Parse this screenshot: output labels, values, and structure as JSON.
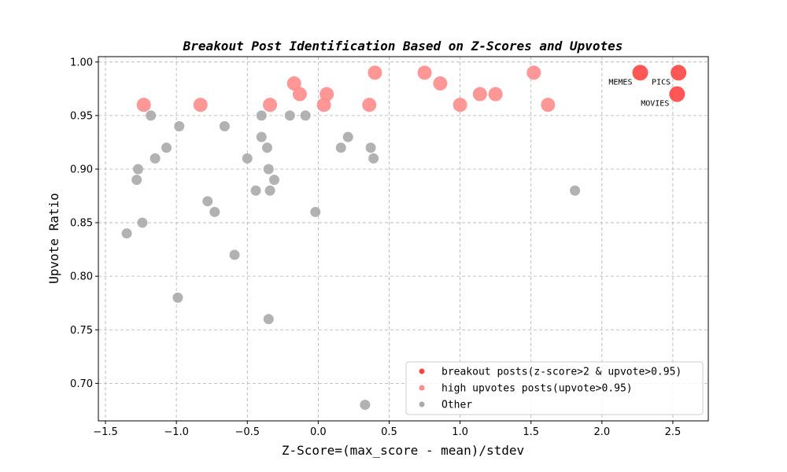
{
  "chart_data": {
    "type": "scatter",
    "title": "Breakout Post Identification Based on Z-Scores and Upvotes",
    "xlabel": "Z-Score=(max_score - mean)/stdev",
    "ylabel": "Upvote Ratio",
    "xlim": [
      -1.55,
      2.75
    ],
    "ylim": [
      0.665,
      1.005
    ],
    "xticks": [
      -1.5,
      -1.0,
      -0.5,
      0.0,
      0.5,
      1.0,
      1.5,
      2.0,
      2.5
    ],
    "xtick_labels": [
      "−1.5",
      "−1.0",
      "−0.5",
      "0.0",
      "0.5",
      "1.0",
      "1.5",
      "2.0",
      "2.5"
    ],
    "yticks": [
      0.7,
      0.75,
      0.8,
      0.85,
      0.9,
      0.95,
      1.0
    ],
    "ytick_labels": [
      "0.70",
      "0.75",
      "0.80",
      "0.85",
      "0.90",
      "0.95",
      "1.00"
    ],
    "grid": true,
    "legend_position": "lower-right",
    "series": [
      {
        "name": "breakout posts(z-score>2 & upvote>0.95)",
        "color": "#ff4444",
        "points": [
          {
            "x": 2.27,
            "y": 0.99
          },
          {
            "x": 2.54,
            "y": 0.99
          },
          {
            "x": 2.53,
            "y": 0.97
          }
        ]
      },
      {
        "name": "high upvotes posts(upvote>0.95)",
        "color": "#ff8c8c",
        "points": [
          {
            "x": -1.23,
            "y": 0.96
          },
          {
            "x": -0.83,
            "y": 0.96
          },
          {
            "x": -0.34,
            "y": 0.96
          },
          {
            "x": -0.17,
            "y": 0.98
          },
          {
            "x": -0.13,
            "y": 0.97
          },
          {
            "x": 0.04,
            "y": 0.96
          },
          {
            "x": 0.06,
            "y": 0.97
          },
          {
            "x": 0.36,
            "y": 0.96
          },
          {
            "x": 0.4,
            "y": 0.99
          },
          {
            "x": 0.75,
            "y": 0.99
          },
          {
            "x": 0.86,
            "y": 0.98
          },
          {
            "x": 1.0,
            "y": 0.96
          },
          {
            "x": 1.14,
            "y": 0.97
          },
          {
            "x": 1.25,
            "y": 0.97
          },
          {
            "x": 1.52,
            "y": 0.99
          },
          {
            "x": 1.62,
            "y": 0.96
          }
        ]
      },
      {
        "name": "Other",
        "color": "#aaaaaa",
        "points": [
          {
            "x": -1.35,
            "y": 0.84
          },
          {
            "x": -1.28,
            "y": 0.89
          },
          {
            "x": -1.27,
            "y": 0.9
          },
          {
            "x": -1.24,
            "y": 0.85
          },
          {
            "x": -1.18,
            "y": 0.95
          },
          {
            "x": -1.15,
            "y": 0.91
          },
          {
            "x": -1.07,
            "y": 0.92
          },
          {
            "x": -0.99,
            "y": 0.78
          },
          {
            "x": -0.98,
            "y": 0.94
          },
          {
            "x": -0.78,
            "y": 0.87
          },
          {
            "x": -0.73,
            "y": 0.86
          },
          {
            "x": -0.66,
            "y": 0.94
          },
          {
            "x": -0.59,
            "y": 0.82
          },
          {
            "x": -0.5,
            "y": 0.91
          },
          {
            "x": -0.44,
            "y": 0.88
          },
          {
            "x": -0.4,
            "y": 0.93
          },
          {
            "x": -0.4,
            "y": 0.95
          },
          {
            "x": -0.36,
            "y": 0.92
          },
          {
            "x": -0.35,
            "y": 0.9
          },
          {
            "x": -0.35,
            "y": 0.76
          },
          {
            "x": -0.34,
            "y": 0.88
          },
          {
            "x": -0.31,
            "y": 0.89
          },
          {
            "x": -0.2,
            "y": 0.95
          },
          {
            "x": -0.09,
            "y": 0.95
          },
          {
            "x": -0.02,
            "y": 0.86
          },
          {
            "x": 0.16,
            "y": 0.92
          },
          {
            "x": 0.21,
            "y": 0.93
          },
          {
            "x": 0.33,
            "y": 0.68
          },
          {
            "x": 0.37,
            "y": 0.92
          },
          {
            "x": 0.39,
            "y": 0.91
          },
          {
            "x": 1.81,
            "y": 0.88
          }
        ]
      }
    ],
    "annotations": [
      {
        "text": "MEMES",
        "x": 2.27,
        "y": 0.99
      },
      {
        "text": "PICS",
        "x": 2.54,
        "y": 0.99
      },
      {
        "text": "MOVIES",
        "x": 2.53,
        "y": 0.97
      }
    ]
  }
}
